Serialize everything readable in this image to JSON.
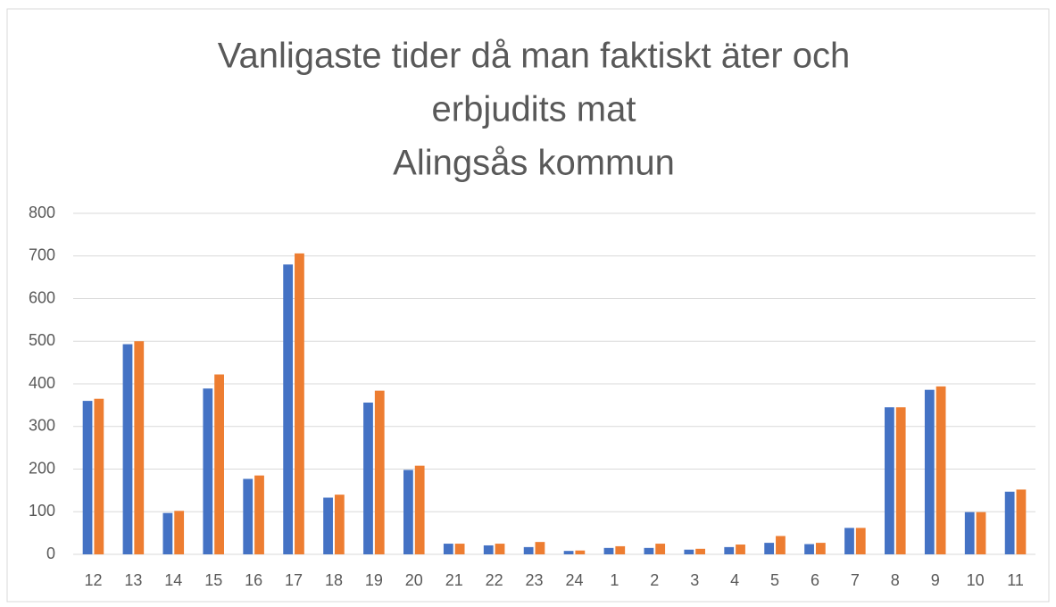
{
  "chart_data": {
    "type": "bar",
    "title": [
      "Vanligaste tider då man faktiskt äter och",
      "erbjudits mat",
      "Alingsås kommun"
    ],
    "categories": [
      "12",
      "13",
      "14",
      "15",
      "16",
      "17",
      "18",
      "19",
      "20",
      "21",
      "22",
      "23",
      "24",
      "1",
      "2",
      "3",
      "4",
      "5",
      "6",
      "7",
      "8",
      "9",
      "10",
      "11"
    ],
    "series": [
      {
        "color": "#4472c4",
        "values": [
          360,
          493,
          97,
          389,
          177,
          680,
          133,
          356,
          198,
          25,
          21,
          17,
          8,
          15,
          15,
          11,
          17,
          27,
          24,
          62,
          345,
          386,
          99,
          147
        ]
      },
      {
        "color": "#ed7d31",
        "values": [
          365,
          500,
          102,
          422,
          185,
          706,
          140,
          384,
          208,
          25,
          25,
          29,
          9,
          19,
          25,
          13,
          23,
          43,
          27,
          62,
          345,
          394,
          99,
          152
        ]
      }
    ],
    "ylim": [
      0,
      800
    ],
    "yticks": [
      0,
      100,
      200,
      300,
      400,
      500,
      600,
      700,
      800
    ],
    "grid": true
  }
}
